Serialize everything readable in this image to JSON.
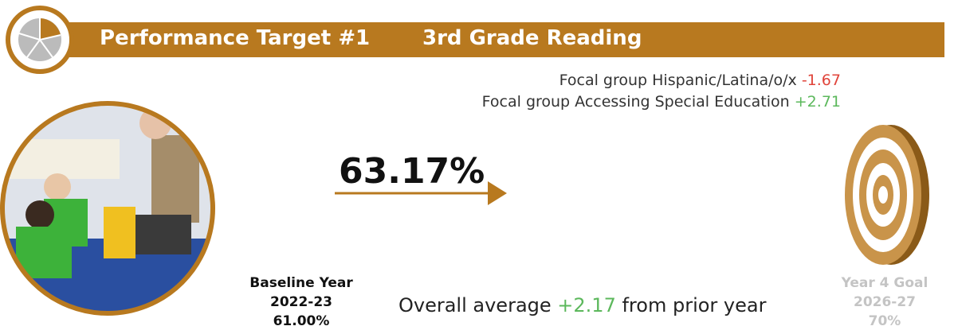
{
  "header": {
    "title": "Performance Target #1",
    "subtitle": "3rd Grade Reading"
  },
  "focal_groups": [
    {
      "label": "Focal group Hispanic/Latina/o/x",
      "change": "-1.67"
    },
    {
      "label": "Focal group Accessing Special Education",
      "change": "+2.71"
    }
  ],
  "current": "63.17%",
  "baseline": {
    "label": "Baseline Year",
    "year": "2022-23",
    "value": "61.00%"
  },
  "overall": {
    "prefix": "Overall average",
    "change": "+2.17",
    "suffix": "from prior year"
  },
  "goal": {
    "label": "Year 4 Goal",
    "year": "2026-27",
    "value": "70%"
  }
}
